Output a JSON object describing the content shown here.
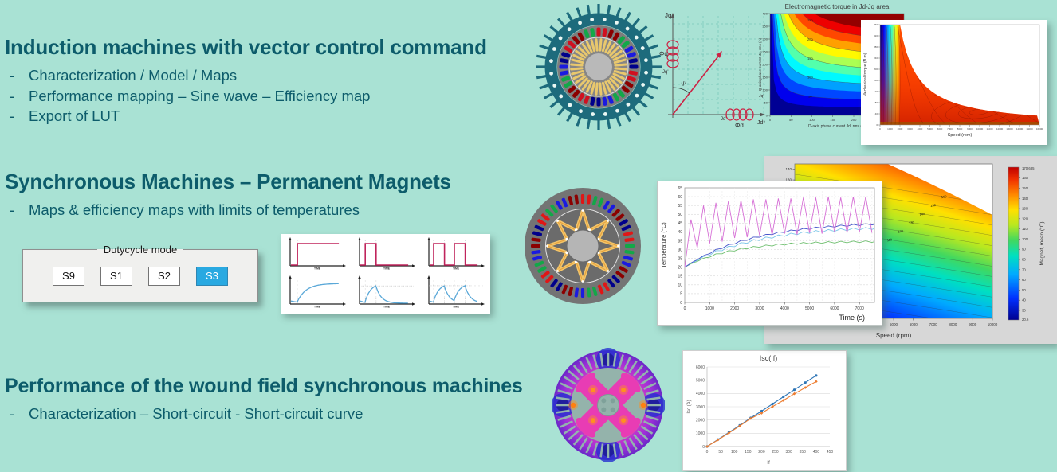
{
  "slide": {
    "bg": "#a9e2d4",
    "text_color": "#0d5c6b",
    "sections": [
      {
        "title": "Induction machines with vector control command",
        "bullets": [
          "Characterization / Model / Maps",
          "Performance mapping – Sine wave – Efficiency map",
          "Export of LUT"
        ]
      },
      {
        "title": "Synchronous Machines – Permanent Magnets",
        "bullets": [
          "Maps & efficiency maps with limits of temperatures"
        ]
      },
      {
        "title": "Performance of the wound field synchronous machines",
        "bullets": [
          "Characterization – Short-circuit - Short-circuit curve"
        ]
      }
    ]
  },
  "dutycycle": {
    "legend": "Dutycycle mode",
    "buttons": [
      {
        "label": "S9",
        "selected": false
      },
      {
        "label": "S1",
        "selected": false
      },
      {
        "label": "S2",
        "selected": false
      },
      {
        "label": "S3",
        "selected": true
      }
    ],
    "selected_bg": "#29a9e1",
    "panel_bg": "#f0f0ee"
  },
  "duty_waveforms": {
    "time_label": "TIME",
    "pulse_color": "#c0245c",
    "response_color": "#5aa8d8",
    "pulses": [
      [
        [
          0,
          0
        ],
        [
          0.13,
          0
        ],
        [
          0.13,
          1
        ],
        [
          0.97,
          1
        ]
      ],
      [
        [
          0,
          0
        ],
        [
          0.1,
          0
        ],
        [
          0.1,
          1
        ],
        [
          0.32,
          1
        ],
        [
          0.32,
          0
        ],
        [
          0.97,
          0
        ]
      ],
      [
        [
          0,
          0
        ],
        [
          0.08,
          0
        ],
        [
          0.08,
          1
        ],
        [
          0.3,
          1
        ],
        [
          0.3,
          0
        ],
        [
          0.5,
          0
        ],
        [
          0.5,
          1
        ],
        [
          0.72,
          1
        ],
        [
          0.72,
          0
        ],
        [
          0.97,
          0
        ]
      ]
    ],
    "response_tau": [
      0.18,
      0.11,
      0.11
    ]
  },
  "vector_diagram": {
    "color": "#cc2244",
    "labels": {
      "jq_axis": "Jq",
      "phi_q": "Φq",
      "jq_cur": "Jq'",
      "psi": "Ψ",
      "jd_cur": "Jd'",
      "phi_d": "Φd",
      "jd_axis": "Jd*",
      "jq_ref": "Jq*"
    }
  },
  "machines": {
    "induction": {
      "fin": "#1d6b7c",
      "ring": "#1d6b7c",
      "dot": "#eaf7f3",
      "body": "#7d7d7d",
      "slot_palette": [
        "#d01020",
        "#8b0000",
        "#12a848",
        "#1a1ae0",
        "#00008b"
      ],
      "rotor": "#868686",
      "bar": "#e9c86d",
      "shaft": "#b9b9b9"
    },
    "pm": {
      "body": "#747474",
      "slot_palette": [
        "#e01616",
        "#12a848",
        "#1a1ae0",
        "#8b0000",
        "#00008b"
      ],
      "rotor": "#6b6b6b",
      "magnet": "#f2c56a",
      "magnet_edge": "#e0861a",
      "shaft": "#b5b5b5"
    },
    "wound": {
      "outer_hot": "#ff50c8",
      "outer_mid": "#e03cc0",
      "outer_edge": "#6a28c8",
      "blue_patch": "#2630cf",
      "teeth": "#93b4ad",
      "core": "#94b3ab",
      "pole": "#e83cb4",
      "hotspot": "#ff9020"
    }
  },
  "chart_data": [
    {
      "id": "torque_jdjq",
      "type": "heatmap",
      "title": "Electromagnetic torque in Jd-Jq area",
      "xlabel": "D-axis phase current Jd, rms (A)",
      "ylabel": "Q-axis phase current Jq, rms (A)",
      "xlim": [
        0,
        320
      ],
      "ylim": [
        0,
        400
      ],
      "x_ticks": [
        0,
        50,
        100,
        150,
        200,
        250,
        300
      ],
      "y_ticks": [
        0,
        50,
        100,
        150,
        200,
        250,
        300,
        350,
        400
      ],
      "colormap": "jet",
      "relation": "torque grows with Jd*Jq; L-shaped iso-torque contours, blue low left/bottom, red top-right",
      "contour_labels": [
        "50",
        "100",
        "150",
        "200",
        "250"
      ]
    },
    {
      "id": "torque_speed_map",
      "type": "heatmap",
      "xlabel": "Speed (rpm)",
      "ylabel": "Mechanical torque (N.m)",
      "xlim": [
        0,
        16000
      ],
      "ylim": [
        0,
        360
      ],
      "x_ticks": [
        0,
        1000,
        2000,
        3000,
        4000,
        5000,
        6000,
        7000,
        8000,
        9000,
        10000,
        11000,
        12000,
        13000,
        14000,
        15000,
        16000
      ],
      "y_ticks": [
        0,
        40,
        80,
        120,
        160,
        200,
        240,
        280,
        320,
        360
      ],
      "base_speed_rpm": 2000,
      "colormap": "jet",
      "description": "efficiency map under constant-power torque envelope; rainbow bands at low speed, red/orange body, nested contour loops lower right"
    },
    {
      "id": "temperature_time",
      "type": "line",
      "xlabel": "Time (s)",
      "ylabel": "Temperature (°C)",
      "xlim": [
        0,
        7600
      ],
      "ylim": [
        0,
        65
      ],
      "x_ticks": [
        0,
        1000,
        2000,
        3000,
        4000,
        5000,
        6000,
        7000
      ],
      "y_ticks": [
        0,
        5,
        10,
        15,
        20,
        25,
        30,
        35,
        40,
        45,
        50,
        55,
        60,
        65
      ],
      "cycle_period_s": 500,
      "series": [
        {
          "name": "magenta",
          "color": "#d66fd6",
          "style": "sawtooth",
          "start": 20,
          "peaks": [
            47,
            55,
            56.5,
            57.5,
            58,
            58.5,
            58.5,
            59,
            59,
            59.5,
            59.5,
            60,
            59.5,
            60,
            60,
            60
          ],
          "valleys": [
            31,
            33.5,
            34.5,
            36.5,
            37,
            38,
            38,
            39,
            38.5,
            39.5,
            39,
            40,
            39.5,
            40,
            39.5,
            40
          ]
        },
        {
          "name": "blue",
          "color": "#4253c9",
          "style": "exp",
          "start": 20,
          "final": 46,
          "tau": 2700,
          "ripple": 0.9
        },
        {
          "name": "cyan",
          "color": "#7cc6e8",
          "style": "exp",
          "start": 20,
          "final": 43.5,
          "tau": 2700,
          "ripple": 1.3
        },
        {
          "name": "green",
          "color": "#6fbf6f",
          "style": "exp",
          "start": 20,
          "final": 34.8,
          "tau": 1900,
          "ripple": 0.9
        }
      ]
    },
    {
      "id": "magnet_temp_map",
      "type": "heatmap",
      "xlabel": "Speed (rpm)",
      "xlim": [
        0,
        10000
      ],
      "x_ticks": [
        0,
        1000,
        2000,
        3000,
        4000,
        5000,
        6000,
        7000,
        8000,
        9000,
        10000
      ],
      "ylim": [
        0,
        145
      ],
      "y_ticks": [
        0,
        10,
        20,
        30,
        40,
        50,
        60,
        70,
        80,
        90,
        100,
        110,
        120,
        130,
        140
      ],
      "colorbar": {
        "label": "Magnet, mean (°C)",
        "min": 20.6,
        "max": 170.685,
        "min_label": "20.6",
        "max_label": "170.685",
        "ticks": [
          30,
          40,
          50,
          60,
          70,
          80,
          90,
          100,
          110,
          120,
          130,
          140,
          150,
          160
        ]
      },
      "contour_labels": [
        "50",
        "60",
        "70",
        "80",
        "90",
        "100",
        "110",
        "120",
        "130",
        "140",
        "150",
        "160"
      ],
      "colormap": "jet",
      "description": "magnet mean temperature map over speed/torque; dark blue bottom to red top-right, white cut-off corner above the torque envelope"
    },
    {
      "id": "isc_if",
      "type": "line",
      "title": "Isc(If)",
      "xlabel": "If",
      "ylabel": "Isc (A)",
      "xlim": [
        0,
        450
      ],
      "ylim": [
        0,
        6000
      ],
      "x_ticks": [
        0,
        50,
        100,
        150,
        200,
        250,
        300,
        350,
        400,
        450
      ],
      "y_ticks": [
        0,
        1000,
        2000,
        3000,
        4000,
        5000,
        6000
      ],
      "x": [
        0,
        40,
        80,
        120,
        160,
        200,
        240,
        280,
        320,
        360,
        400
      ],
      "series": [
        {
          "name": "blue",
          "color": "#2e75b6",
          "marker": "circle",
          "values": [
            0,
            530,
            1065,
            1600,
            2160,
            2670,
            3210,
            3750,
            4280,
            4820,
            5350
          ]
        },
        {
          "name": "orange",
          "color": "#ed7d31",
          "marker": "diamond",
          "values": [
            0,
            505,
            1020,
            1555,
            2120,
            2520,
            3010,
            3480,
            3980,
            4440,
            4900
          ]
        }
      ],
      "grid": "horizontal"
    }
  ]
}
